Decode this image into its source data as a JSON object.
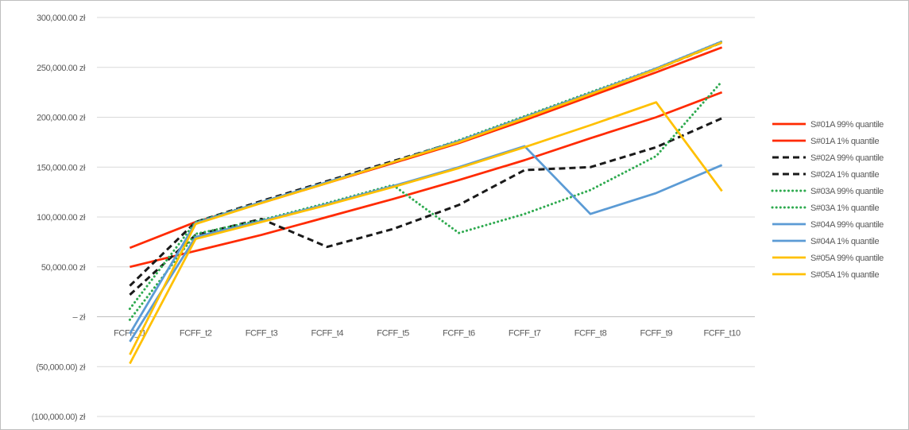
{
  "chart_data": {
    "type": "line",
    "title": "",
    "xlabel": "",
    "ylabel": "",
    "categories": [
      "FCFF_t1",
      "FCFF_t2",
      "FCFF_t3",
      "FCFF_t4",
      "FCFF_t5",
      "FCFF_t6",
      "FCFF_t7",
      "FCFF_t8",
      "FCFF_t9",
      "FCFF_t10"
    ],
    "ylim": [
      -100000,
      300000
    ],
    "y_ticks": [
      300000,
      250000,
      200000,
      150000,
      100000,
      50000,
      0,
      -50000,
      -100000
    ],
    "y_tick_labels": [
      "300,000.00 zł",
      "250,000.00 zł",
      "200,000.00 zł",
      "150,000.00 zł",
      "100,000.00 zł",
      "50,000.00 zł",
      "–   zł",
      "(50,000.00) zł",
      "(100,000.00) zł"
    ],
    "grid": true,
    "legend_position": "right",
    "series": [
      {
        "name": "S#01A 99% quantile",
        "color": "#ff2a00",
        "dash": "solid",
        "values": [
          69000,
          95000,
          114000,
          134000,
          154000,
          174000,
          197000,
          221000,
          245000,
          270000
        ]
      },
      {
        "name": "S#01A 1% quantile",
        "color": "#ff2a00",
        "dash": "solid",
        "values": [
          50000,
          66000,
          82000,
          100000,
          118000,
          137000,
          157000,
          179000,
          200000,
          225000
        ]
      },
      {
        "name": "S#02A 99% quantile",
        "color": "#1a1a1a",
        "dash": "dashed",
        "values": [
          31000,
          95000,
          116000,
          136000,
          156000,
          176000,
          200000,
          224000,
          248000,
          275000
        ]
      },
      {
        "name": "S#02A 1% quantile",
        "color": "#1a1a1a",
        "dash": "dashed",
        "values": [
          22000,
          82000,
          98000,
          70000,
          88000,
          112000,
          147000,
          150000,
          170000,
          199000
        ]
      },
      {
        "name": "S#03A 99% quantile",
        "color": "#2eaa4f",
        "dash": "dotted",
        "values": [
          8000,
          95000,
          115000,
          135000,
          155000,
          177000,
          201000,
          225000,
          249000,
          276000
        ]
      },
      {
        "name": "S#03A 1% quantile",
        "color": "#2eaa4f",
        "dash": "dotted",
        "values": [
          -3000,
          83000,
          97000,
          114000,
          132000,
          84000,
          103000,
          127000,
          161000,
          236000
        ]
      },
      {
        "name": "S#04A 99% quantile",
        "color": "#5b9bd5",
        "dash": "solid",
        "values": [
          -17000,
          94000,
          115000,
          135000,
          155000,
          176000,
          200000,
          224000,
          249000,
          276000
        ]
      },
      {
        "name": "S#04A 1% quantile",
        "color": "#5b9bd5",
        "dash": "solid",
        "values": [
          -25000,
          80000,
          96000,
          113000,
          131000,
          150000,
          171000,
          103000,
          124000,
          152000
        ]
      },
      {
        "name": "S#05A 99% quantile",
        "color": "#ffc000",
        "dash": "solid",
        "values": [
          -38000,
          93000,
          114000,
          134000,
          155000,
          175000,
          199000,
          223000,
          248000,
          275000
        ]
      },
      {
        "name": "S#05A 1% quantile",
        "color": "#ffc000",
        "dash": "solid",
        "values": [
          -47000,
          78000,
          95000,
          112000,
          130000,
          149000,
          170000,
          192000,
          215000,
          126000
        ]
      }
    ]
  }
}
